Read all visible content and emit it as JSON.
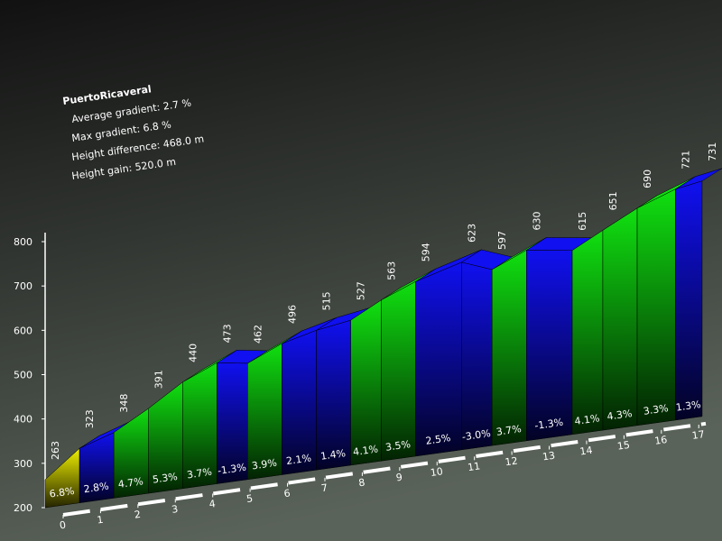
{
  "chart_data": {
    "type": "climb-profile",
    "title": "PuertoRicaveral",
    "stats": [
      "Average gradient: 2.7 %",
      "Max gradient: 6.8 %",
      "Height difference: 468.0 m",
      "Height gain: 520.0 m"
    ],
    "x": [
      0,
      0.9,
      1.8,
      2.7,
      3.6,
      4.5,
      5.3,
      6.2,
      7.1,
      8.0,
      8.8,
      9.7,
      10.9,
      11.7,
      12.6,
      13.8,
      14.6,
      15.5,
      16.5,
      17.2
    ],
    "values": [
      263,
      323,
      348,
      391,
      440,
      473,
      462,
      496,
      515,
      527,
      563,
      594,
      623,
      597,
      630,
      615,
      651,
      690,
      721,
      731
    ],
    "gradients": {
      "values": [
        6.8,
        2.8,
        4.7,
        5.3,
        3.7,
        -1.3,
        3.9,
        2.1,
        1.4,
        4.1,
        3.5,
        2.5,
        -3.0,
        3.7,
        -1.3,
        4.1,
        4.3,
        3.3,
        1.3
      ],
      "value_labels": [
        "6.8%",
        "2.8%",
        "4.7%",
        "5.3%",
        "3.7%",
        "-1.3%",
        "3.9%",
        "2.1%",
        "1.4%",
        "4.1%",
        "3.5%",
        "2.5%",
        "-3.0%",
        "3.7%",
        "-1.3%",
        "4.1%",
        "4.3%",
        "3.3%",
        "1.3%"
      ],
      "colors": [
        "#f0f000",
        "#1010f0",
        "#10e010",
        "#10e010",
        "#10e010",
        "#1010f0",
        "#10e010",
        "#1010f0",
        "#1010f0",
        "#10e010",
        "#10e010",
        "#1010f0",
        "#1010f0",
        "#10e010",
        "#1010f0",
        "#10e010",
        "#10e010",
        "#10e010",
        "#1010f0"
      ]
    },
    "xlim": [
      0,
      17.2
    ],
    "xticks": [
      0,
      1,
      2,
      3,
      4,
      5,
      6,
      7,
      8,
      9,
      10,
      11,
      12,
      13,
      14,
      15,
      16,
      17
    ],
    "ylim": [
      200,
      800
    ],
    "yticks": [
      200,
      300,
      400,
      500,
      600,
      700,
      800
    ]
  }
}
